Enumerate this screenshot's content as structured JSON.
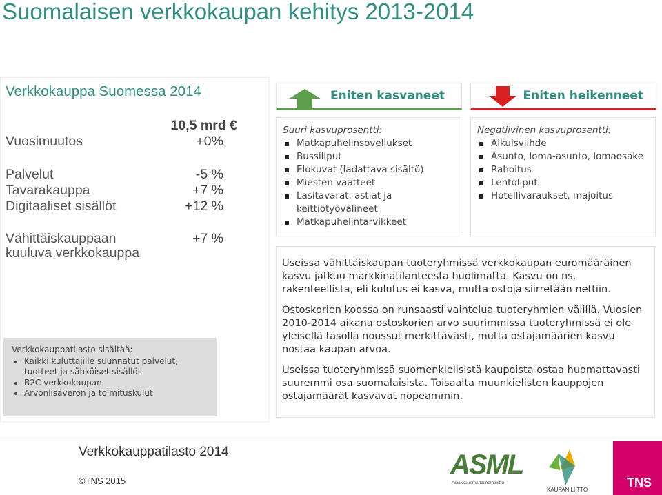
{
  "title": "Suomalaisen verkkokaupan kehitys 2013-2014",
  "summary": {
    "heading": "Verkkokauppa Suomessa 2014",
    "total": "10,5 mrd €",
    "rows": [
      [
        "Vuosimuutos",
        "+0%"
      ],
      [
        "Palvelut",
        "-5 %"
      ],
      [
        "Tavarakauppa",
        "+7 %"
      ],
      [
        "Digitaaliset sisällöt",
        "+12 %"
      ],
      [
        "Vähittäiskauppaan kuuluva verkkokauppa",
        "+7 %"
      ]
    ]
  },
  "note": {
    "heading": "Verkkokauppatilasto sisältää:",
    "items": [
      "Kaikki kuluttajille suunnatut palvelut, tuotteet ja sähköiset sisällöt",
      "B2C-verkkokaupan",
      "Arvonlisäveron ja toimituskulut"
    ]
  },
  "grown": {
    "heading": "Eniten kasvaneet",
    "intro": "Suuri kasvuprosentti:",
    "items": [
      "Matkapuhelinsovellukset",
      "Bussiliput",
      "Elokuvat (ladattava sisältö)",
      "Miesten vaatteet",
      "Lasitavarat, astiat ja keittiötyövälineet",
      "Matkapuhelintarvikkeet"
    ]
  },
  "declined": {
    "heading": "Eniten heikenneet",
    "intro": "Negatiivinen kasvuprosentti:",
    "items": [
      "Aikuisviihde",
      "Asunto, loma-asunto, lomaosake",
      "Rahoitus",
      "Lentoliput",
      "Hotellivaraukset, majoitus"
    ]
  },
  "commentary": [
    "Useissa vähittäiskaupan tuoteryhmissä verkkokaupan euromääräinen kasvu jatkuu markkinatilanteesta huolimatta. Kasvu on ns. rakenteellista, eli kulutus ei kasva, mutta ostoja siirretään nettiin.",
    "Ostoskorien koossa on runsaasti vaihtelua tuoteryhmien välillä. Vuosien 2010-2014 aikana ostoskorien arvo suurimmissa tuoteryhmissä ei ole yleisellä tasolla noussut merkittävästi, mutta ostajamäärien kasvu nostaa kaupan arvoa.",
    "Useissa tuoteryhmissä suomenkielisistä kaupoista ostaa huomattavasti suuremmi osa suomalaisista. Toisaalta muunkielisten kauppojen ostajamäärät kasvavat nopeammin."
  ],
  "footer": {
    "report": "Verkkokauppatilasto 2014",
    "copyright": "©TNS 2015",
    "logos": {
      "asml": "ASML",
      "asml_sub": "Asiakkuusmarkkinointiliitto",
      "kaupan_liitto": "KAUPAN LIITTO",
      "tns": "TNS"
    }
  }
}
